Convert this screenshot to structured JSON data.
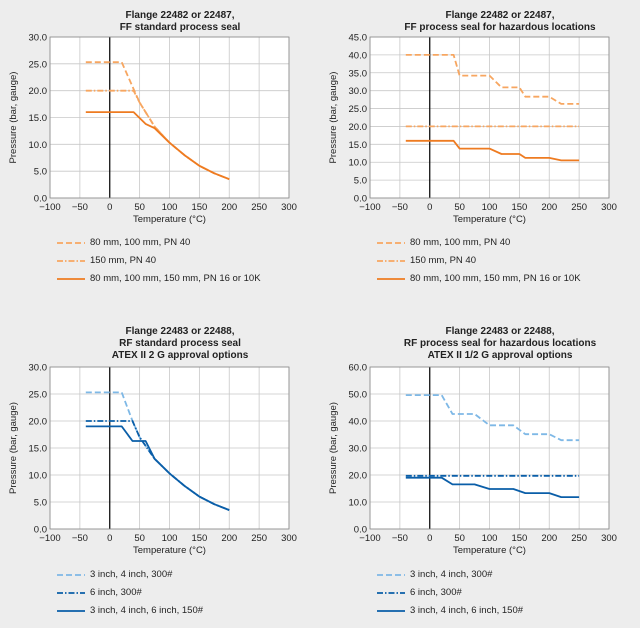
{
  "chart_data": [
    {
      "type": "line",
      "title_lines": [
        "Flange 22482 or 22487,",
        "FF standard process seal"
      ],
      "xlabel": "Temperature (°C)",
      "ylabel": "Pressure (bar, gauge)",
      "xlim": [
        -100,
        300
      ],
      "ylim": [
        0,
        30
      ],
      "xticks": [
        -100,
        -50,
        0,
        50,
        100,
        150,
        200,
        250,
        300
      ],
      "yticks": [
        0,
        5,
        10,
        15,
        20,
        25,
        30
      ],
      "ytick_labels": [
        "0.0",
        "5.0",
        "10.0",
        "15.0",
        "20.0",
        "25.0",
        "30.0"
      ],
      "grid": true,
      "legend_position": "below",
      "series": [
        {
          "name": "80 mm, 100 mm, PN 40",
          "style": "dashed",
          "color": "#f7a660",
          "x": [
            -40,
            20,
            50,
            75,
            100,
            125,
            150,
            175,
            200
          ],
          "y": [
            25.3,
            25.3,
            17.8,
            13.3,
            10.3,
            8.0,
            6.0,
            4.6,
            3.5
          ]
        },
        {
          "name": "150 mm, PN 40",
          "style": "dashdot",
          "color": "#f7a660",
          "x": [
            -40,
            40,
            50,
            75,
            100,
            125,
            150,
            175,
            200
          ],
          "y": [
            20.0,
            20.0,
            17.8,
            13.3,
            10.3,
            8.0,
            6.0,
            4.6,
            3.5
          ]
        },
        {
          "name": "80 mm, 100 mm, 150 mm, PN 16 or 10K",
          "style": "solid",
          "color": "#ee7b21",
          "x": [
            -40,
            40,
            60,
            75,
            100,
            125,
            150,
            175,
            200
          ],
          "y": [
            16.0,
            16.0,
            13.8,
            13.0,
            10.3,
            8.0,
            6.0,
            4.6,
            3.5
          ]
        }
      ]
    },
    {
      "type": "line",
      "title_lines": [
        "Flange 22482 or 22487,",
        "FF process seal for hazardous locations"
      ],
      "xlabel": "Temperature (°C)",
      "ylabel": "Pressure (bar, gauge)",
      "xlim": [
        -100,
        300
      ],
      "ylim": [
        0,
        45
      ],
      "xticks": [
        -100,
        -50,
        0,
        50,
        100,
        150,
        200,
        250,
        300
      ],
      "yticks": [
        0,
        5,
        10,
        15,
        20,
        25,
        30,
        35,
        40,
        45
      ],
      "ytick_labels": [
        "0.0",
        "5.0",
        "10.0",
        "15.0",
        "20.0",
        "25.0",
        "30.0",
        "35.0",
        "40.0",
        "45.0"
      ],
      "grid": true,
      "legend_position": "below",
      "series": [
        {
          "name": "80 mm, 100 mm, PN 40",
          "style": "dashed",
          "color": "#f7a660",
          "x": [
            -40,
            40,
            50,
            100,
            120,
            150,
            160,
            200,
            220,
            250
          ],
          "y": [
            40.0,
            40.0,
            34.2,
            34.2,
            30.9,
            30.9,
            28.3,
            28.3,
            26.3,
            26.3
          ]
        },
        {
          "name": "150 mm, PN 40",
          "style": "dashdot",
          "color": "#f7a660",
          "x": [
            -40,
            250
          ],
          "y": [
            20.0,
            20.0
          ]
        },
        {
          "name": "80 mm, 100 mm, 150 mm, PN 16 or 10K",
          "style": "solid",
          "color": "#ee7b21",
          "x": [
            -40,
            40,
            50,
            100,
            120,
            150,
            160,
            200,
            220,
            250
          ],
          "y": [
            16.0,
            16.0,
            13.8,
            13.8,
            12.3,
            12.3,
            11.2,
            11.2,
            10.5,
            10.5
          ]
        }
      ]
    },
    {
      "type": "line",
      "title_lines": [
        "Flange 22483 or 22488,",
        "RF standard process seal",
        "ATEX II 2 G approval options"
      ],
      "xlabel": "Temperature (°C)",
      "ylabel": "Pressure (bar, gauge)",
      "xlim": [
        -100,
        300
      ],
      "ylim": [
        0,
        30
      ],
      "xticks": [
        -100,
        -50,
        0,
        50,
        100,
        150,
        200,
        250,
        300
      ],
      "yticks": [
        0,
        5,
        10,
        15,
        20,
        25,
        30
      ],
      "ytick_labels": [
        "0.0",
        "5.0",
        "10.0",
        "15.0",
        "20.0",
        "25.0",
        "30.0"
      ],
      "grid": true,
      "legend_position": "below",
      "series": [
        {
          "name": "3 inch, 4 inch, 300#",
          "style": "dashed",
          "color": "#7eb8e6",
          "x": [
            -40,
            20,
            38,
            50,
            75,
            100,
            125,
            150,
            175,
            200
          ],
          "y": [
            25.3,
            25.3,
            20.0,
            17.0,
            13.0,
            10.3,
            8.0,
            6.0,
            4.6,
            3.5
          ]
        },
        {
          "name": "6 inch, 300#",
          "style": "dashdot",
          "color": "#0a5ea8",
          "x": [
            -40,
            38,
            50,
            75,
            100,
            125,
            150,
            175,
            200
          ],
          "y": [
            20.0,
            20.0,
            17.0,
            13.0,
            10.3,
            8.0,
            6.0,
            4.6,
            3.5
          ]
        },
        {
          "name": "3 inch, 4 inch, 6 inch, 150#",
          "style": "solid",
          "color": "#0a5ea8",
          "x": [
            -40,
            20,
            38,
            60,
            75,
            100,
            125,
            150,
            175,
            200
          ],
          "y": [
            19.0,
            19.0,
            16.3,
            16.3,
            13.0,
            10.3,
            8.0,
            6.0,
            4.6,
            3.5
          ]
        }
      ]
    },
    {
      "type": "line",
      "title_lines": [
        "Flange 22483 or 22488,",
        "RF process seal for hazardous locations",
        "ATEX II 1/2 G approval options"
      ],
      "xlabel": "Temperature (°C)",
      "ylabel": "Pressure (bar, gauge)",
      "xlim": [
        -100,
        300
      ],
      "ylim": [
        0,
        60
      ],
      "xticks": [
        -100,
        -50,
        0,
        50,
        100,
        150,
        200,
        250,
        300
      ],
      "yticks": [
        0,
        10,
        20,
        30,
        40,
        50,
        60
      ],
      "ytick_labels": [
        "0.0",
        "10.0",
        "20.0",
        "30.0",
        "40.0",
        "50.0",
        "60.0"
      ],
      "grid": true,
      "legend_position": "below",
      "series": [
        {
          "name": "3 inch, 4 inch, 300#",
          "style": "dashed",
          "color": "#7eb8e6",
          "x": [
            -40,
            20,
            38,
            75,
            100,
            140,
            160,
            200,
            220,
            250
          ],
          "y": [
            49.6,
            49.6,
            42.6,
            42.6,
            38.4,
            38.4,
            35.1,
            35.1,
            32.9,
            32.9
          ]
        },
        {
          "name": "6 inch, 300#",
          "style": "dashdot",
          "color": "#0a5ea8",
          "x": [
            -40,
            250
          ],
          "y": [
            19.7,
            19.7
          ]
        },
        {
          "name": "3 inch, 4 inch, 6 inch, 150#",
          "style": "solid",
          "color": "#0a5ea8",
          "x": [
            -40,
            20,
            38,
            75,
            100,
            140,
            160,
            200,
            220,
            250
          ],
          "y": [
            19.0,
            19.0,
            16.5,
            16.5,
            14.8,
            14.8,
            13.3,
            13.3,
            11.8,
            11.8
          ]
        }
      ]
    }
  ]
}
